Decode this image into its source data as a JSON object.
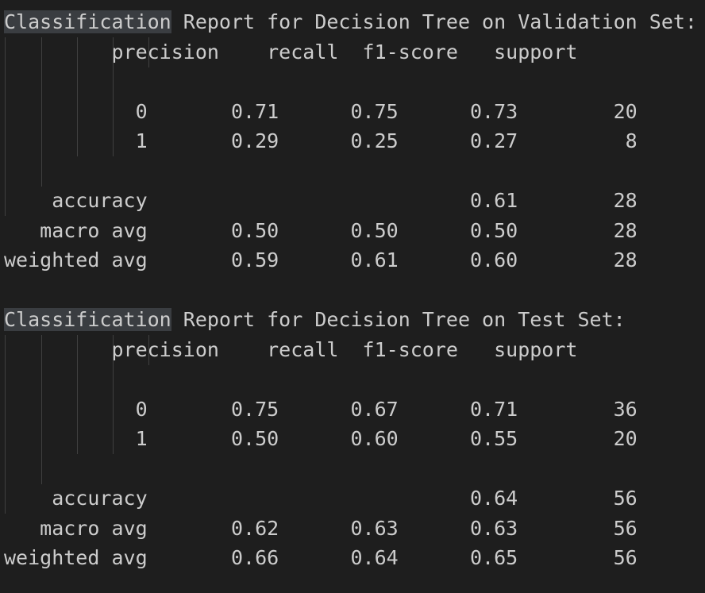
{
  "output": {
    "reports": [
      {
        "highlight": "Classification",
        "title_rest": " Report for Decision Tree on Validation Set:",
        "header": "         precision    recall  f1-score   support",
        "rows": [
          "           0       0.71      0.75      0.73        20",
          "           1       0.29      0.25      0.27         8"
        ],
        "summary": [
          "    accuracy                           0.61        28",
          "   macro avg       0.50      0.50      0.50        28",
          "weighted avg       0.59      0.61      0.60        28"
        ]
      },
      {
        "highlight": "Classification",
        "title_rest": " Report for Decision Tree on Test Set:",
        "header": "         precision    recall  f1-score   support",
        "rows": [
          "           0       0.75      0.67      0.71        36",
          "           1       0.50      0.60      0.55        20"
        ],
        "summary": [
          "    accuracy                           0.64        56",
          "   macro avg       0.62      0.63      0.63        56",
          "weighted avg       0.66      0.64      0.65        56"
        ]
      }
    ]
  },
  "colors": {
    "background": "#1e1e1e",
    "text": "#cccccc",
    "highlight": "#3a3d41",
    "indent_guide": "#404040"
  }
}
